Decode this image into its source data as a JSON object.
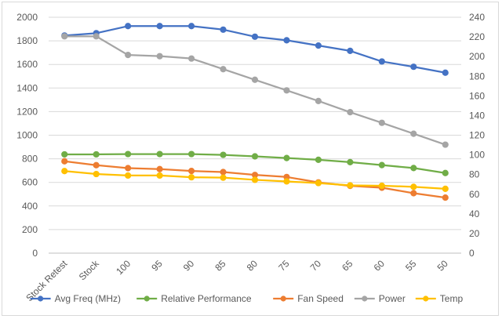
{
  "chart_data": {
    "type": "line",
    "categories": [
      "Stock Retest",
      "Stock",
      "100",
      "95",
      "90",
      "85",
      "80",
      "75",
      "70",
      "65",
      "60",
      "55",
      "50"
    ],
    "y_left": {
      "min": 0,
      "max": 2000,
      "step": 200,
      "ticks": [
        "0",
        "200",
        "400",
        "600",
        "800",
        "1000",
        "1200",
        "1400",
        "1600",
        "1800",
        "2000"
      ]
    },
    "y_right": {
      "min": 0,
      "max": 240,
      "step": 20,
      "ticks": [
        "0",
        "20",
        "40",
        "60",
        "80",
        "100",
        "120",
        "140",
        "160",
        "180",
        "200",
        "220",
        "240"
      ]
    },
    "grid": true,
    "legend_position": "bottom",
    "series": [
      {
        "name": "Avg Freq (MHz)",
        "axis": "left",
        "color": "#4472C4",
        "values": [
          1845,
          1865,
          1925,
          1925,
          1925,
          1895,
          1835,
          1805,
          1760,
          1715,
          1625,
          1580,
          1530
        ]
      },
      {
        "name": "Relative Performance",
        "axis": "right",
        "color": "#70AD47",
        "values": [
          100.5,
          100.5,
          100.8,
          100.8,
          100.8,
          100,
          98.5,
          96.8,
          95,
          92.6,
          89.6,
          86.6,
          81.5
        ]
      },
      {
        "name": "Fan Speed",
        "axis": "right",
        "color": "#ED7D31",
        "values": [
          93.5,
          89.5,
          86.5,
          85.5,
          83.6,
          82.5,
          79.6,
          77.5,
          72,
          68.5,
          66.6,
          61,
          56.5
        ]
      },
      {
        "name": "Power",
        "axis": "right",
        "color": "#A5A5A5",
        "values": [
          220.6,
          220.6,
          201.6,
          200.4,
          198,
          187.2,
          176.4,
          165.6,
          154.8,
          143.4,
          132.6,
          121.5,
          110.4
        ]
      },
      {
        "name": "Temp",
        "axis": "right",
        "color": "#FFC000",
        "values": [
          83.5,
          80.5,
          79,
          79,
          77.2,
          76.8,
          74.6,
          73,
          71.3,
          69,
          68.6,
          67.5,
          65.5
        ]
      }
    ]
  }
}
